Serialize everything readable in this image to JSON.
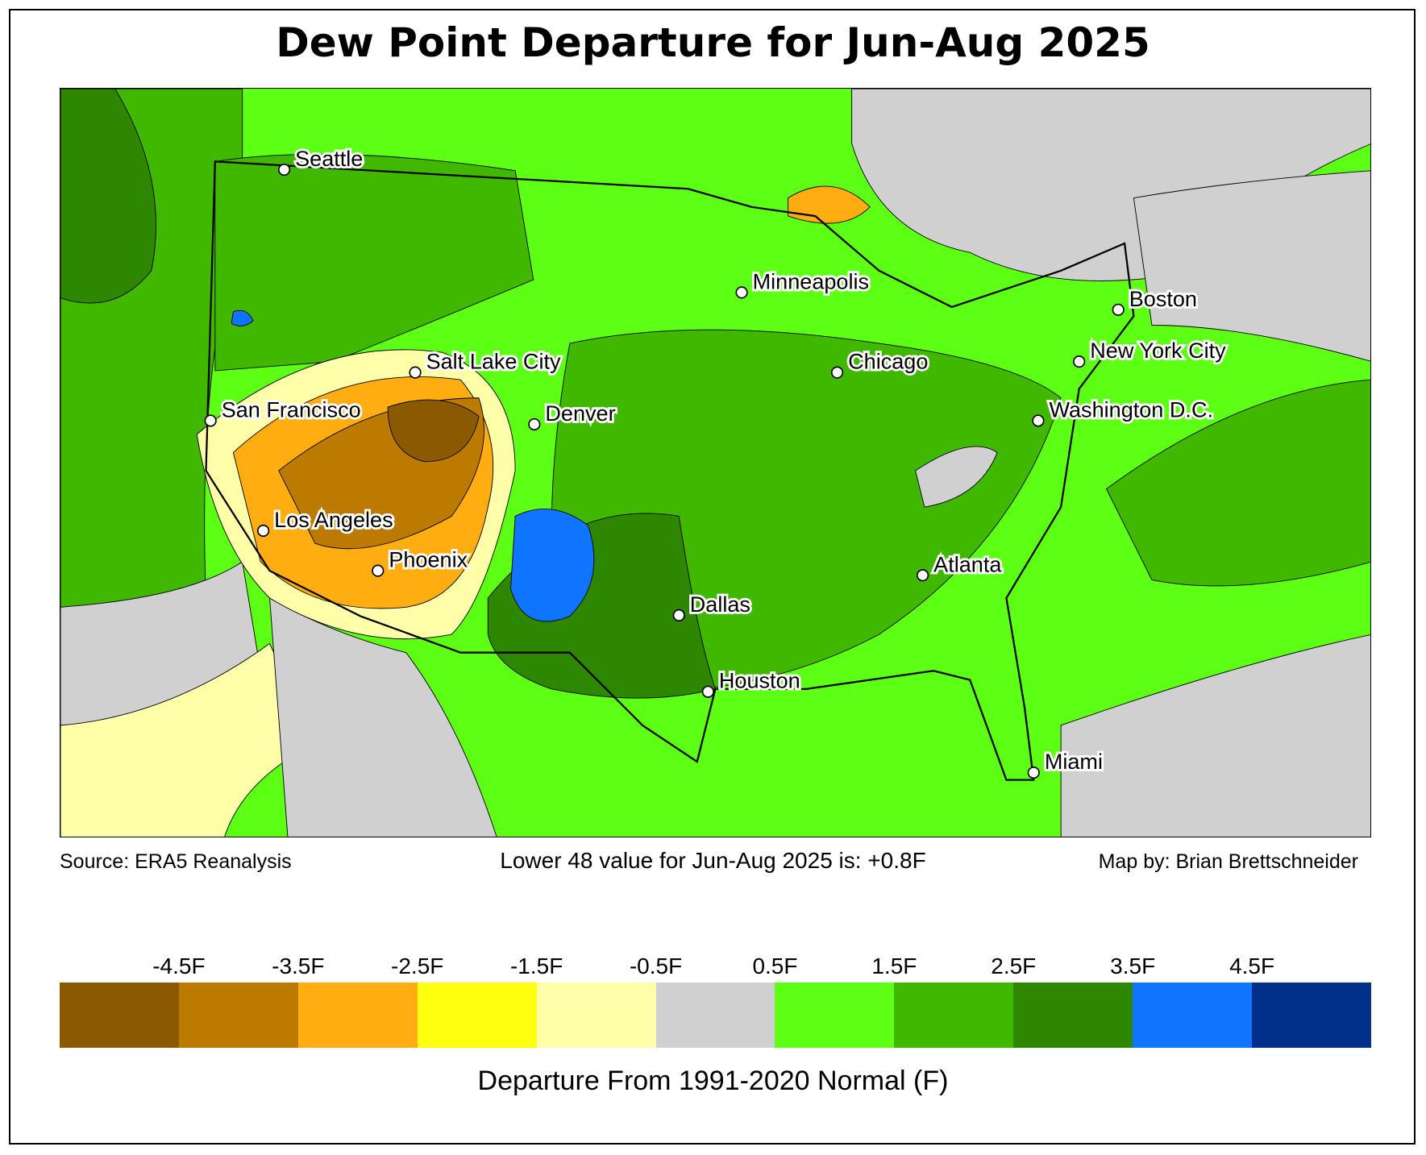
{
  "title": "Dew Point Departure for Jun-Aug 2025",
  "footer": {
    "source": "Source: ERA5 Reanalysis",
    "lower48": "Lower 48 value for Jun-Aug 2025 is: +0.8F",
    "credit": "Map by: Brian Brettschneider"
  },
  "colorbar": {
    "colors": [
      "#8b5a00",
      "#bc7a00",
      "#ffad10",
      "#ffff10",
      "#ffffaa",
      "#d0d0d0",
      "#5dff14",
      "#40b800",
      "#2e8700",
      "#0f75ff",
      "#00308a"
    ],
    "ticks": [
      "-4.5F",
      "-3.5F",
      "-2.5F",
      "-1.5F",
      "-0.5F",
      "0.5F",
      "1.5F",
      "2.5F",
      "3.5F",
      "4.5F"
    ],
    "label": "Departure From 1991-2020 Normal (F)"
  },
  "cities": [
    "Seattle",
    "San Francisco",
    "Los Angeles",
    "Phoenix",
    "Salt Lake City",
    "Denver",
    "Minneapolis",
    "Chicago",
    "Dallas",
    "Houston",
    "Atlanta",
    "Miami",
    "Boston",
    "New York City",
    "Washington D.C."
  ]
}
